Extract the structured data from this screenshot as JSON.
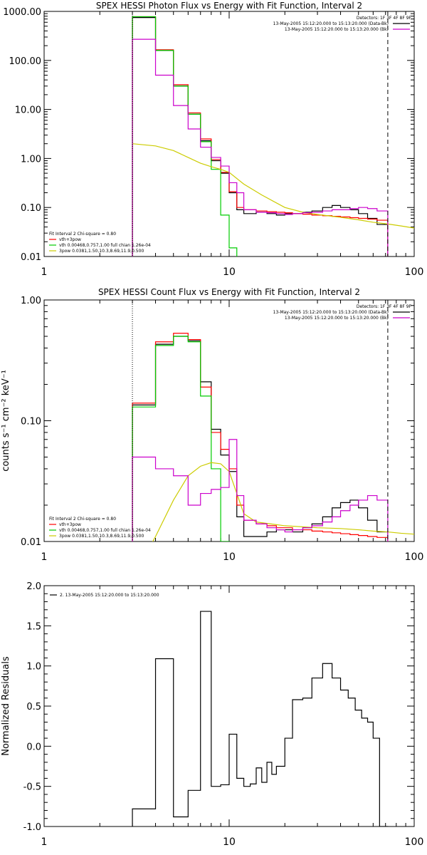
{
  "chart_data": [
    {
      "type": "line",
      "title": "SPEX HESSI Photon Flux vs Energy with Fit Function, Interval 2",
      "xlabel": "",
      "ylabel": "",
      "x_scale": "log",
      "y_scale": "log",
      "xlim": [
        1,
        100
      ],
      "ylim": [
        0.01,
        1000
      ],
      "x_tick_labels": [
        {
          "value": 1,
          "label": "1"
        },
        {
          "value": 10,
          "label": "10"
        },
        {
          "value": 100,
          "label": "100"
        }
      ],
      "y_tick_labels": [
        {
          "value": 0.01,
          "label": "0.01"
        },
        {
          "value": 0.1,
          "label": "0.10"
        },
        {
          "value": 1,
          "label": "1.00"
        },
        {
          "value": 10,
          "label": "10.00"
        },
        {
          "value": 100,
          "label": "100.00"
        },
        {
          "value": 1000,
          "label": "1000.00"
        }
      ],
      "vlines": [
        {
          "x": 3,
          "style": "dotted"
        },
        {
          "x": 72,
          "style": "dashed"
        }
      ],
      "info_lines": [
        "Detectors: 1F 3F 4F 8F 9F"
      ],
      "legend_topright": [
        {
          "label": "13-May-2005 15:12:20.000 to 15:13:20.000 (Data-Bk)",
          "color": "#000000"
        },
        {
          "label": "13-May-2005 15:12:20.000 to 15:13:20.000 (Bk)",
          "color": "#cc00cc"
        }
      ],
      "legend_bottomleft": [
        {
          "label": "Fit Interval 2   Chi-square = 0.80",
          "color": null
        },
        {
          "label": "vth+3pow",
          "color": "#ff0000"
        },
        {
          "label": "vth 0.00468,0.757,1.00  full chian 1.26e-04",
          "color": "#00cc00"
        },
        {
          "label": "3pow 0.0381,1.50,10.3,8.69,11.9,0.500",
          "color": "#cccc00"
        }
      ],
      "series": [
        {
          "name": "Data-Bk",
          "color": "#000000",
          "style": "step",
          "edges": [
            3,
            4,
            5,
            6,
            7,
            8,
            9,
            10,
            11,
            12,
            14,
            16,
            18,
            20,
            22,
            25,
            28,
            32,
            36,
            40,
            45,
            50,
            56,
            63,
            72
          ],
          "values": [
            750,
            160,
            30,
            8,
            2.3,
            0.9,
            0.5,
            0.2,
            0.09,
            0.075,
            0.08,
            0.075,
            0.07,
            0.075,
            0.075,
            0.08,
            0.085,
            0.1,
            0.11,
            0.1,
            0.09,
            0.075,
            0.06,
            0.045
          ]
        },
        {
          "name": "vth+3pow",
          "color": "#ff0000",
          "style": "step",
          "edges": [
            3,
            4,
            5,
            6,
            7,
            8,
            9,
            10,
            11,
            12,
            14,
            16,
            18,
            20,
            22,
            25,
            28,
            32,
            36,
            40,
            45,
            50,
            56,
            63,
            72
          ],
          "values": [
            780,
            165,
            32,
            8.5,
            2.5,
            0.95,
            0.52,
            0.21,
            0.1,
            0.09,
            0.085,
            0.082,
            0.08,
            0.078,
            0.075,
            0.073,
            0.07,
            0.068,
            0.066,
            0.064,
            0.062,
            0.06,
            0.058,
            0.055
          ]
        },
        {
          "name": "vth",
          "color": "#00cc00",
          "style": "step",
          "edges": [
            3,
            4,
            5,
            6,
            7,
            8,
            9,
            10,
            11
          ],
          "values": [
            780,
            160,
            30,
            8,
            2.2,
            0.6,
            0.07,
            0.015
          ]
        },
        {
          "name": "3pow",
          "color": "#cccc00",
          "style": "line",
          "x": [
            3,
            4,
            5,
            6,
            7,
            8,
            9,
            10,
            12,
            15,
            20,
            25,
            30,
            40,
            50,
            60,
            72,
            85,
            100
          ],
          "y": [
            2.0,
            1.8,
            1.45,
            1.05,
            0.8,
            0.68,
            0.6,
            0.52,
            0.3,
            0.18,
            0.1,
            0.08,
            0.072,
            0.063,
            0.056,
            0.05,
            0.046,
            0.042,
            0.038
          ]
        },
        {
          "name": "Bk",
          "color": "#cc00cc",
          "style": "step",
          "edges": [
            3,
            4,
            5,
            6,
            7,
            8,
            9,
            10,
            11,
            12,
            14,
            16,
            18,
            20,
            22,
            25,
            28,
            32,
            36,
            40,
            45,
            50,
            56,
            63,
            72
          ],
          "values": [
            270,
            50,
            12,
            4,
            1.7,
            1.05,
            0.7,
            0.32,
            0.2,
            0.09,
            0.08,
            0.078,
            0.075,
            0.072,
            0.075,
            0.078,
            0.08,
            0.085,
            0.09,
            0.09,
            0.095,
            0.1,
            0.095,
            0.085
          ]
        }
      ]
    },
    {
      "type": "line",
      "title": "SPEX HESSI Count Flux vs Energy with Fit Function, Interval 2",
      "xlabel": "",
      "ylabel": "counts s⁻¹ cm⁻² keV⁻¹",
      "x_scale": "log",
      "y_scale": "log",
      "xlim": [
        1,
        100
      ],
      "ylim": [
        0.01,
        1.0
      ],
      "x_tick_labels": [
        {
          "value": 1,
          "label": "1"
        },
        {
          "value": 10,
          "label": "10"
        },
        {
          "value": 100,
          "label": "100"
        }
      ],
      "y_tick_labels": [
        {
          "value": 0.01,
          "label": "0.01"
        },
        {
          "value": 0.1,
          "label": "0.10"
        },
        {
          "value": 1,
          "label": "1.00"
        }
      ],
      "vlines": [
        {
          "x": 3,
          "style": "dotted"
        },
        {
          "x": 72,
          "style": "dashed"
        }
      ],
      "info_lines": [
        "Detectors: 1F 3F 4F 8F 9F"
      ],
      "legend_topright": [
        {
          "label": "13-May-2005 15:12:20.000 to 15:13:20.000 (Data-Bk)",
          "color": "#000000"
        },
        {
          "label": "13-May-2005 15:12:20.000 to 15:13:20.000 (Bk)",
          "color": "#cc00cc"
        }
      ],
      "legend_bottomleft": [
        {
          "label": "Fit Interval 2   Chi-square = 0.80",
          "color": null
        },
        {
          "label": "vth+3pow",
          "color": "#ff0000"
        },
        {
          "label": "vth 0.00468,0.757,1.00  full chian 1.26e-04",
          "color": "#00cc00"
        },
        {
          "label": "3pow 0.0381,1.50,10.3,8.69,11.9,0.500",
          "color": "#cccc00"
        }
      ],
      "series": [
        {
          "name": "Data-Bk",
          "color": "#000000",
          "style": "step",
          "edges": [
            3,
            4,
            5,
            6,
            7,
            8,
            9,
            10,
            11,
            12,
            14,
            16,
            18,
            20,
            22,
            25,
            28,
            32,
            36,
            40,
            45,
            50,
            56,
            63,
            72
          ],
          "values": [
            0.135,
            0.43,
            0.5,
            0.46,
            0.21,
            0.085,
            0.052,
            0.038,
            0.016,
            0.011,
            0.011,
            0.012,
            0.0125,
            0.0125,
            0.012,
            0.013,
            0.014,
            0.016,
            0.019,
            0.021,
            0.022,
            0.019,
            0.015,
            0.012
          ]
        },
        {
          "name": "vth+3pow",
          "color": "#ff0000",
          "style": "step",
          "edges": [
            3,
            4,
            5,
            6,
            7,
            8,
            9,
            10,
            11,
            12,
            14,
            16,
            18,
            20,
            22,
            25,
            28,
            32,
            36,
            40,
            45,
            50,
            56,
            63,
            72
          ],
          "values": [
            0.14,
            0.45,
            0.53,
            0.47,
            0.19,
            0.08,
            0.058,
            0.04,
            0.02,
            0.015,
            0.014,
            0.0135,
            0.013,
            0.013,
            0.0125,
            0.0125,
            0.0122,
            0.012,
            0.0118,
            0.0116,
            0.0114,
            0.0112,
            0.011,
            0.0108
          ]
        },
        {
          "name": "vth",
          "color": "#00cc00",
          "style": "step",
          "edges": [
            3,
            4,
            5,
            6,
            7,
            8,
            9,
            10
          ],
          "values": [
            0.13,
            0.42,
            0.5,
            0.45,
            0.16,
            0.04,
            0.01
          ]
        },
        {
          "name": "3pow",
          "color": "#cccc00",
          "style": "line",
          "x": [
            3,
            4,
            5,
            6,
            7,
            8,
            9,
            10,
            11,
            12,
            14,
            20,
            30,
            40,
            50,
            60,
            72,
            85,
            100
          ],
          "y": [
            0.0,
            0.011,
            0.022,
            0.035,
            0.042,
            0.045,
            0.044,
            0.038,
            0.025,
            0.017,
            0.0145,
            0.0135,
            0.013,
            0.0128,
            0.0125,
            0.0122,
            0.012,
            0.0117,
            0.0115
          ]
        },
        {
          "name": "Bk",
          "color": "#cc00cc",
          "style": "step",
          "edges": [
            3,
            4,
            5,
            6,
            7,
            8,
            9,
            10,
            11,
            12,
            14,
            16,
            18,
            20,
            22,
            25,
            28,
            32,
            36,
            40,
            45,
            50,
            56,
            63,
            72
          ],
          "values": [
            0.05,
            0.04,
            0.035,
            0.02,
            0.025,
            0.027,
            0.028,
            0.07,
            0.024,
            0.015,
            0.014,
            0.013,
            0.0125,
            0.012,
            0.0125,
            0.013,
            0.0135,
            0.0145,
            0.016,
            0.018,
            0.02,
            0.022,
            0.024,
            0.022
          ]
        }
      ]
    },
    {
      "type": "line",
      "title": "",
      "xlabel": "",
      "ylabel": "Normalized Residuals",
      "x_scale": "log",
      "y_scale": "linear",
      "xlim": [
        1,
        100
      ],
      "ylim": [
        -1.0,
        2.0
      ],
      "x_tick_labels": [
        {
          "value": 1,
          "label": "1"
        },
        {
          "value": 10,
          "label": "10"
        },
        {
          "value": 100,
          "label": "100"
        }
      ],
      "y_tick_labels": [
        {
          "value": -1.0,
          "label": "-1.0"
        },
        {
          "value": -0.5,
          "label": "-0.5"
        },
        {
          "value": 0.0,
          "label": "0.0"
        },
        {
          "value": 0.5,
          "label": "0.5"
        },
        {
          "value": 1.0,
          "label": "1.0"
        },
        {
          "value": 1.5,
          "label": "1.5"
        },
        {
          "value": 2.0,
          "label": "2.0"
        }
      ],
      "legend_topleft": [
        {
          "label": "2. 13-May-2005 15:12:20.000 to 15:13:20.000",
          "color": "#000000"
        }
      ],
      "series": [
        {
          "name": "2. 13-May-2005 15:12:20.000 to 15:13:20.000",
          "color": "#000000",
          "style": "step",
          "edges": [
            3,
            4,
            5,
            6,
            7,
            8,
            9,
            10,
            11,
            12,
            13,
            14,
            15,
            16,
            17,
            18,
            20,
            22,
            25,
            28,
            32,
            36,
            40,
            44,
            48,
            52,
            56,
            60,
            65,
            72
          ],
          "values": [
            -0.78,
            1.09,
            -0.88,
            -0.55,
            1.68,
            -0.5,
            -0.48,
            0.15,
            -0.4,
            -0.5,
            -0.47,
            -0.27,
            -0.45,
            -0.2,
            -0.35,
            -0.25,
            0.1,
            0.58,
            0.6,
            0.85,
            1.03,
            0.85,
            0.7,
            0.6,
            0.45,
            0.35,
            0.3,
            0.1,
            -1.0
          ]
        }
      ]
    }
  ]
}
